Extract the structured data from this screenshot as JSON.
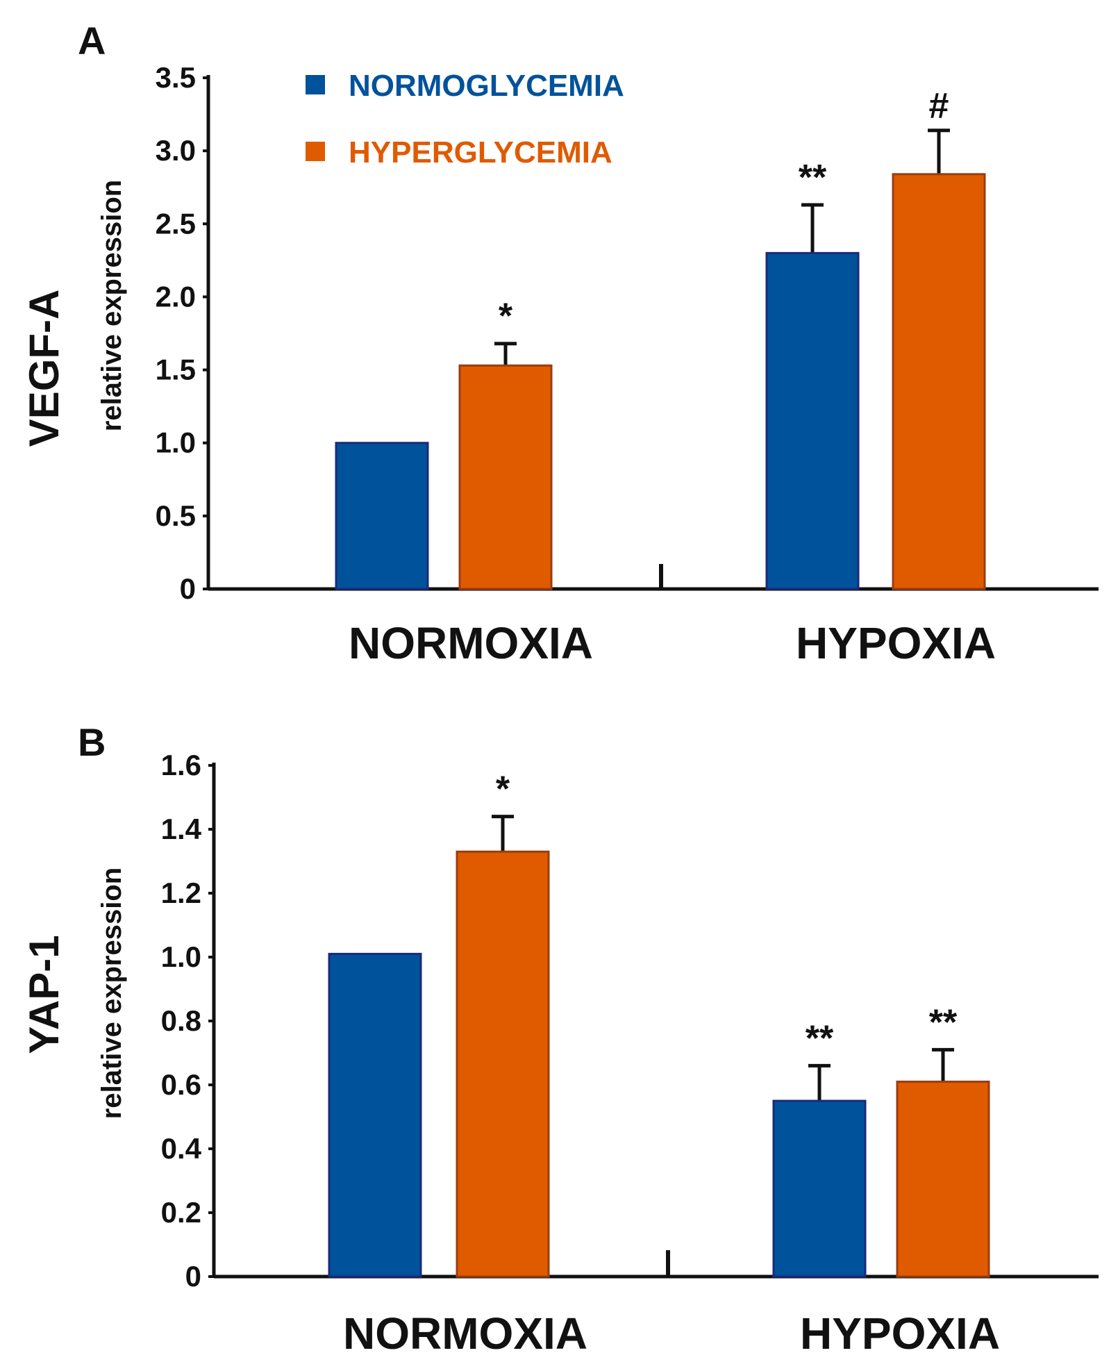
{
  "legend": {
    "items": [
      {
        "label": "NORMOGLYCEMIA",
        "color": "#00529B"
      },
      {
        "label": "HYPERGLYCEMIA",
        "color": "#E05A00"
      }
    ]
  },
  "chart_data": [
    {
      "type": "bar",
      "panel": "A",
      "gene_label": "VEGF-A",
      "ylabel": "relative expression",
      "categories": [
        "NORMOXIA",
        "HYPOXIA"
      ],
      "ylim": [
        0,
        3.5
      ],
      "yticks": [
        0,
        0.5,
        1.0,
        1.5,
        2.0,
        2.5,
        3.0,
        3.5
      ],
      "ytick_labels": [
        "0",
        "0.5",
        "1.0",
        "1.5",
        "2.0",
        "2.5",
        "3.0",
        "3.5"
      ],
      "series": [
        {
          "name": "NORMOGLYCEMIA",
          "color": "#00529B",
          "values": [
            1.0,
            2.3
          ],
          "errors": [
            0,
            0.33
          ],
          "annotations": [
            "",
            "**"
          ]
        },
        {
          "name": "HYPERGLYCEMIA",
          "color": "#E05A00",
          "values": [
            1.53,
            2.84
          ],
          "errors": [
            0.15,
            0.3
          ],
          "annotations": [
            "*",
            "#"
          ]
        }
      ]
    },
    {
      "type": "bar",
      "panel": "B",
      "gene_label": "YAP-1",
      "ylabel": "relative expression",
      "categories": [
        "NORMOXIA",
        "HYPOXIA"
      ],
      "ylim": [
        0,
        1.6
      ],
      "yticks": [
        0,
        0.2,
        0.4,
        0.6,
        0.8,
        1.0,
        1.2,
        1.4,
        1.6
      ],
      "ytick_labels": [
        "0",
        "0.2",
        "0.4",
        "0.6",
        "0.8",
        "1.0",
        "1.2",
        "1.4",
        "1.6"
      ],
      "series": [
        {
          "name": "NORMOGLYCEMIA",
          "color": "#00529B",
          "values": [
            1.01,
            0.55
          ],
          "errors": [
            0,
            0.11
          ],
          "annotations": [
            "",
            "**"
          ]
        },
        {
          "name": "HYPERGLYCEMIA",
          "color": "#E05A00",
          "values": [
            1.33,
            0.61
          ],
          "errors": [
            0.11,
            0.1
          ],
          "annotations": [
            "*",
            "**"
          ]
        }
      ]
    }
  ]
}
